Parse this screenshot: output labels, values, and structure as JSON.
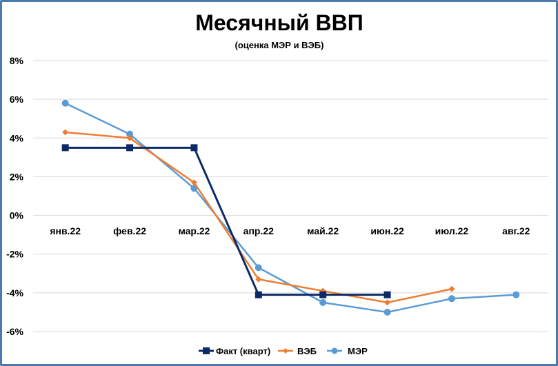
{
  "chart_data": {
    "type": "line",
    "title": "Месячный ВВП",
    "subtitle": "(оценка МЭР и ВЭБ)",
    "categories": [
      "янв.22",
      "фев.22",
      "мар.22",
      "апр.22",
      "май.22",
      "июн.22",
      "июл.22",
      "авг.22"
    ],
    "y_ticks": [
      "8%",
      "6%",
      "4%",
      "2%",
      "0%",
      "-2%",
      "-4%",
      "-6%"
    ],
    "ylim": [
      -6,
      8
    ],
    "y_unit": "%",
    "grid": true,
    "legend_position": "bottom",
    "series": [
      {
        "name": "Факт (кварт)",
        "color": "#0d2a66",
        "marker": "square",
        "segments": [
          {
            "x": [
              0,
              1,
              2
            ],
            "values": [
              3.5,
              3.5,
              3.5
            ]
          },
          {
            "x": [
              2,
              3
            ],
            "values": [
              3.5,
              -4.1
            ]
          },
          {
            "x": [
              3,
              4,
              5
            ],
            "values": [
              -4.1,
              -4.1,
              -4.1
            ]
          }
        ],
        "points": [
          {
            "x": 0,
            "value": 3.5
          },
          {
            "x": 1,
            "value": 3.5
          },
          {
            "x": 2,
            "value": 3.5
          },
          {
            "x": 3,
            "value": -4.1
          },
          {
            "x": 4,
            "value": -4.1
          },
          {
            "x": 5,
            "value": -4.1
          }
        ]
      },
      {
        "name": "ВЭБ",
        "color": "#ed7d31",
        "marker": "diamond",
        "values": [
          4.3,
          4.0,
          1.7,
          -3.3,
          -3.9,
          -4.5,
          -3.8,
          null
        ]
      },
      {
        "name": "МЭР",
        "color": "#5b9bd5",
        "marker": "circle",
        "values": [
          5.8,
          4.2,
          1.4,
          -2.7,
          -4.5,
          -5.0,
          -4.3,
          -4.1
        ]
      }
    ]
  }
}
